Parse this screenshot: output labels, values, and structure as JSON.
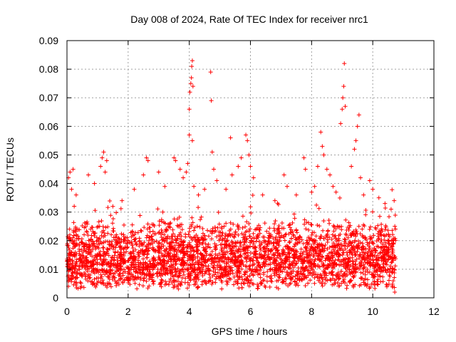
{
  "chart_data": {
    "type": "scatter",
    "title": "Day 008 of 2024, Rate Of TEC Index for receiver nrc1",
    "xlabel": "GPS time / hours",
    "ylabel": "ROTI / TECUs",
    "xlim": [
      0,
      12
    ],
    "ylim": [
      0,
      0.09
    ],
    "xticks": [
      0,
      2,
      4,
      6,
      8,
      10,
      12
    ],
    "xtick_labels": [
      "0",
      "2",
      "4",
      "6",
      "8",
      "10",
      "12"
    ],
    "yticks": [
      0,
      0.01,
      0.02,
      0.03,
      0.04,
      0.05,
      0.06,
      0.07,
      0.08,
      0.09
    ],
    "ytick_labels": [
      "0",
      "0.01",
      "0.02",
      "0.03",
      "0.04",
      "0.05",
      "0.06",
      "0.07",
      "0.08",
      "0.09"
    ],
    "grid": true,
    "marker": "+",
    "color": "#ff0000",
    "data_x_range": [
      0,
      10.75
    ],
    "series": [
      {
        "name": "ROTI",
        "bulk_band": [
          0.003,
          0.028
        ],
        "points": [
          [
            0.05,
            0.042
          ],
          [
            0.1,
            0.044
          ],
          [
            0.2,
            0.045
          ],
          [
            0.15,
            0.038
          ],
          [
            0.3,
            0.036
          ],
          [
            0.7,
            0.043
          ],
          [
            0.9,
            0.04
          ],
          [
            1.1,
            0.046
          ],
          [
            1.15,
            0.049
          ],
          [
            1.2,
            0.051
          ],
          [
            1.25,
            0.044
          ],
          [
            1.3,
            0.048
          ],
          [
            1.5,
            0.032
          ],
          [
            1.8,
            0.034
          ],
          [
            2.2,
            0.038
          ],
          [
            2.5,
            0.043
          ],
          [
            2.6,
            0.049
          ],
          [
            2.65,
            0.048
          ],
          [
            3.0,
            0.044
          ],
          [
            3.2,
            0.039
          ],
          [
            3.5,
            0.049
          ],
          [
            3.55,
            0.048
          ],
          [
            3.7,
            0.045
          ],
          [
            3.8,
            0.042
          ],
          [
            3.9,
            0.044
          ],
          [
            3.95,
            0.047
          ],
          [
            4.0,
            0.066
          ],
          [
            4.02,
            0.072
          ],
          [
            4.05,
            0.075
          ],
          [
            4.07,
            0.077
          ],
          [
            4.08,
            0.081
          ],
          [
            4.1,
            0.083
          ],
          [
            4.12,
            0.074
          ],
          [
            4.0,
            0.057
          ],
          [
            4.1,
            0.055
          ],
          [
            4.15,
            0.039
          ],
          [
            4.3,
            0.036
          ],
          [
            4.5,
            0.038
          ],
          [
            4.7,
            0.079
          ],
          [
            4.72,
            0.069
          ],
          [
            4.75,
            0.051
          ],
          [
            4.8,
            0.045
          ],
          [
            4.9,
            0.041
          ],
          [
            5.2,
            0.038
          ],
          [
            5.35,
            0.056
          ],
          [
            5.4,
            0.043
          ],
          [
            5.6,
            0.046
          ],
          [
            5.7,
            0.049
          ],
          [
            5.85,
            0.057
          ],
          [
            5.9,
            0.055
          ],
          [
            5.95,
            0.05
          ],
          [
            6.0,
            0.046
          ],
          [
            6.1,
            0.042
          ],
          [
            6.4,
            0.036
          ],
          [
            6.8,
            0.034
          ],
          [
            7.1,
            0.043
          ],
          [
            7.2,
            0.039
          ],
          [
            7.5,
            0.036
          ],
          [
            7.75,
            0.049
          ],
          [
            7.8,
            0.045
          ],
          [
            8.0,
            0.037
          ],
          [
            8.1,
            0.039
          ],
          [
            8.2,
            0.046
          ],
          [
            8.3,
            0.058
          ],
          [
            8.35,
            0.053
          ],
          [
            8.4,
            0.05
          ],
          [
            8.5,
            0.045
          ],
          [
            8.6,
            0.043
          ],
          [
            8.7,
            0.039
          ],
          [
            8.8,
            0.037
          ],
          [
            8.95,
            0.061
          ],
          [
            9.0,
            0.066
          ],
          [
            9.02,
            0.07
          ],
          [
            9.05,
            0.074
          ],
          [
            9.07,
            0.082
          ],
          [
            9.1,
            0.067
          ],
          [
            9.3,
            0.046
          ],
          [
            9.4,
            0.052
          ],
          [
            9.45,
            0.055
          ],
          [
            9.5,
            0.06
          ],
          [
            9.55,
            0.064
          ],
          [
            9.6,
            0.042
          ],
          [
            9.7,
            0.036
          ],
          [
            9.9,
            0.041
          ],
          [
            10.0,
            0.038
          ],
          [
            10.2,
            0.035
          ],
          [
            10.4,
            0.033
          ],
          [
            10.6,
            0.031
          ],
          [
            10.7,
            0.034
          ],
          [
            10.72,
            0.002
          ]
        ]
      }
    ]
  }
}
